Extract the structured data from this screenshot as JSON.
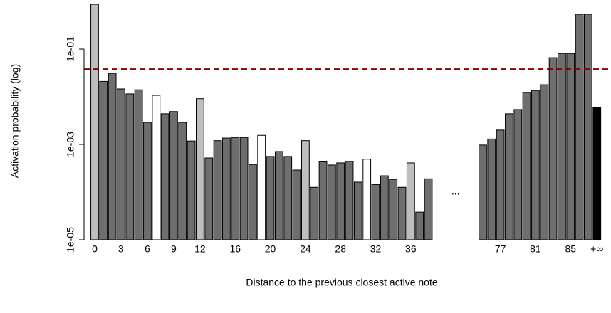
{
  "chart_data": {
    "type": "bar",
    "x_label": "Distance to the previous closest active note",
    "y_label": "Activation probability (log)",
    "log_scale": true,
    "ylim": [
      1e-05,
      1
    ],
    "yticks": [
      {
        "value": 0.1,
        "label": "1e-01"
      },
      {
        "value": 0.001,
        "label": "1e-03"
      },
      {
        "value": 1e-05,
        "label": "1e-05"
      }
    ],
    "categories": [
      "0",
      null,
      null,
      "3",
      null,
      null,
      "6",
      null,
      null,
      "9",
      null,
      null,
      "12",
      null,
      null,
      null,
      "16",
      null,
      null,
      null,
      "20",
      null,
      null,
      null,
      "24",
      null,
      null,
      null,
      "28",
      null,
      null,
      null,
      "32",
      null,
      null,
      null,
      "36",
      null,
      null,
      "...",
      null,
      null,
      "77",
      null,
      null,
      null,
      "81",
      null,
      null,
      null,
      "85",
      null,
      null,
      "+∞"
    ],
    "values": [
      0.87,
      0.021,
      0.031,
      0.0146,
      0.0115,
      0.014,
      0.0029,
      0.0107,
      0.0044,
      0.0049,
      0.0029,
      0.00118,
      0.0091,
      0.00052,
      0.0012,
      0.00136,
      0.0014,
      0.0014,
      0.00038,
      0.00155,
      0.00056,
      0.00071,
      0.00056,
      0.00029,
      0.0012,
      0.000126,
      0.00043,
      0.00037,
      0.00041,
      0.00044,
      0.000162,
      0.00049,
      0.000144,
      0.00022,
      0.000185,
      0.000126,
      0.00041,
      3.8e-05,
      0.00019,
      null,
      0.00097,
      0.0013,
      0.002,
      0.0044,
      0.0054,
      0.0123,
      0.0136,
      0.0179,
      0.066,
      0.081,
      0.081,
      0.54,
      0.54,
      0.006
    ],
    "colors": [
      "#bebebe",
      "#6e6e6e",
      "#6e6e6e",
      "#6e6e6e",
      "#6e6e6e",
      "#6e6e6e",
      "#6e6e6e",
      "#ffffff",
      "#6e6e6e",
      "#6e6e6e",
      "#6e6e6e",
      "#6e6e6e",
      "#bebebe",
      "#6e6e6e",
      "#6e6e6e",
      "#6e6e6e",
      "#6e6e6e",
      "#6e6e6e",
      "#6e6e6e",
      "#ffffff",
      "#6e6e6e",
      "#6e6e6e",
      "#6e6e6e",
      "#6e6e6e",
      "#bebebe",
      "#6e6e6e",
      "#6e6e6e",
      "#6e6e6e",
      "#6e6e6e",
      "#6e6e6e",
      "#6e6e6e",
      "#ffffff",
      "#6e6e6e",
      "#6e6e6e",
      "#6e6e6e",
      "#6e6e6e",
      "#bebebe",
      "#6e6e6e",
      "#6e6e6e",
      null,
      "#6e6e6e",
      "#6e6e6e",
      "#6e6e6e",
      "#6e6e6e",
      "#6e6e6e",
      "#6e6e6e",
      "#6e6e6e",
      "#6e6e6e",
      "#6e6e6e",
      "#6e6e6e",
      "#6e6e6e",
      "#6e6e6e",
      "#6e6e6e",
      "#000000"
    ],
    "reference_line": {
      "value": 0.038,
      "color": "#8b0000"
    }
  }
}
